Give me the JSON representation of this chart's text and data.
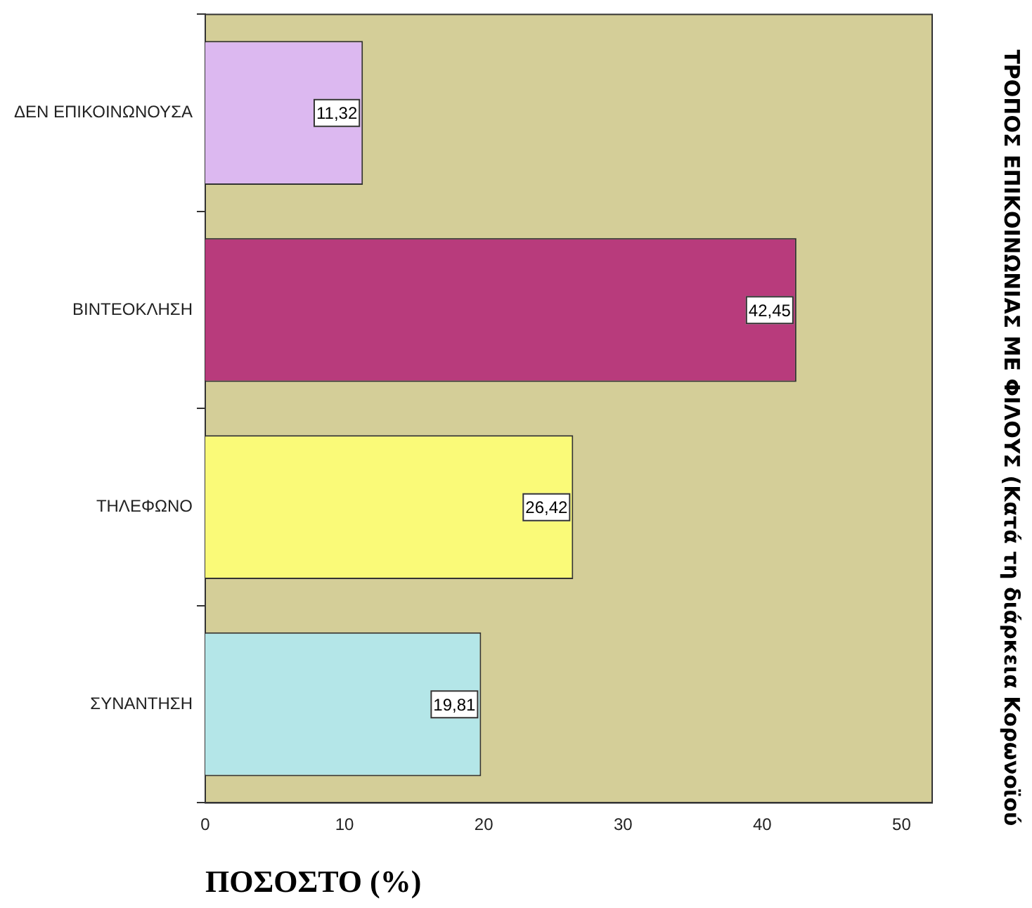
{
  "chart_data": {
    "type": "bar",
    "orientation": "horizontal",
    "categories": [
      "ΔΕΝ ΕΠΙΚΟΙΝΩΝΟΥΣΑ",
      "ΒΙΝΤΕΟΚΛΗΣΗ",
      "ΤΗΛΕΦΩΝΟ",
      "ΣΥΝΑΝΤΗΣΗ"
    ],
    "values": [
      11.32,
      42.45,
      26.42,
      19.81
    ],
    "colors": [
      "#dcb8f0",
      "#b83b7c",
      "#fafa78",
      "#b4e6e8"
    ],
    "value_labels": [
      "11,32",
      "42,45",
      "26,42",
      "19,81"
    ],
    "xlim": [
      0,
      52.2
    ],
    "xticks": [
      0,
      10,
      20,
      30,
      40,
      50
    ],
    "xlabel": "ΠΟΣΟΣΤΟ (%)",
    "ylabel": "ΤΡΟΠΟΣ ΕΠΙΚΟΙΝΩΝΙΑΣ ΜΕ ΦΙΛΟΥΣ (Κατά τη διάρκεια Κορωνοϊού",
    "grid": false,
    "legend": false
  }
}
